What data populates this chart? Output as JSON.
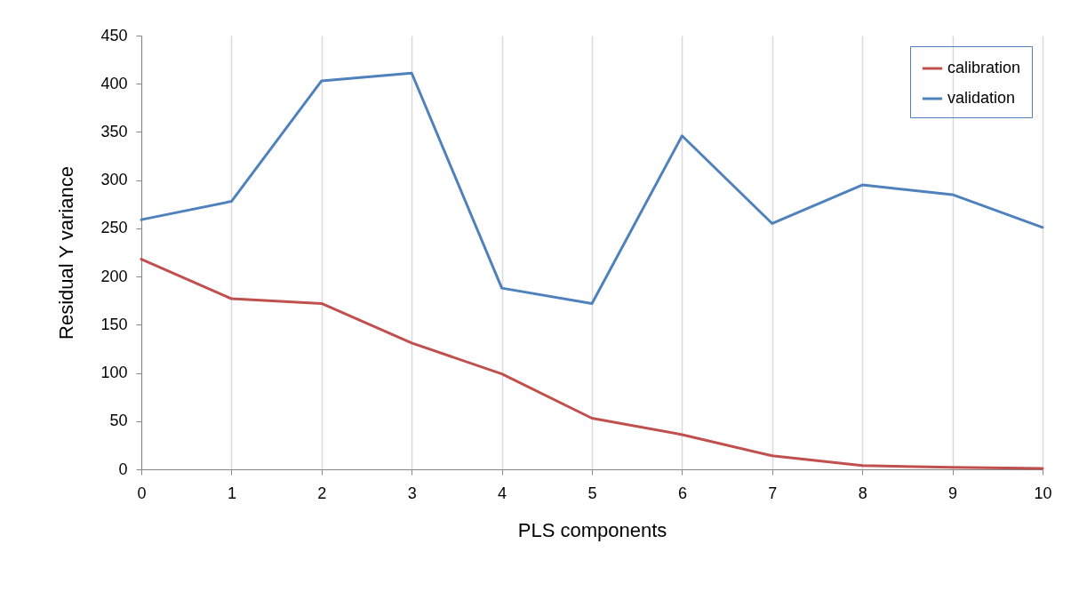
{
  "chart_data": {
    "type": "line",
    "xlabel": "PLS components",
    "ylabel": "Residual Y variance",
    "x": [
      0,
      1,
      2,
      3,
      4,
      5,
      6,
      7,
      8,
      9,
      10
    ],
    "series": [
      {
        "name": "calibration",
        "color": "#c0504d",
        "values": [
          218,
          177,
          172,
          131,
          99,
          53,
          36,
          14,
          4,
          2,
          1
        ]
      },
      {
        "name": "validation",
        "color": "#4f81bd",
        "values": [
          259,
          278,
          403,
          411,
          188,
          172,
          346,
          255,
          295,
          285,
          251
        ]
      }
    ],
    "xlim": [
      0,
      10
    ],
    "xticks": [
      0,
      1,
      2,
      3,
      4,
      5,
      6,
      7,
      8,
      9,
      10
    ],
    "ylim": [
      0,
      450
    ],
    "yticks": [
      0,
      50,
      100,
      150,
      200,
      250,
      300,
      350,
      400,
      450
    ],
    "grid": "x",
    "legend": "top right",
    "marker": "none",
    "line_style": "solid"
  }
}
